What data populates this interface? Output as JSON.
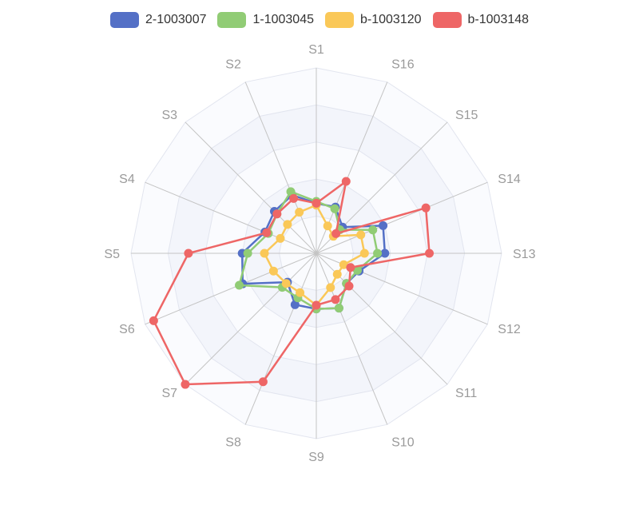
{
  "chart_data": {
    "type": "radar",
    "categories": [
      "S1",
      "S16",
      "S15",
      "S14",
      "S13",
      "S12",
      "S11",
      "S10",
      "S9",
      "S8",
      "S7",
      "S6",
      "S5",
      "S4",
      "S3",
      "S2"
    ],
    "rmax": 100,
    "split_number": 5,
    "series": [
      {
        "name": "2-1003007",
        "color": "#5470c6",
        "values": [
          27,
          27,
          20,
          39,
          37,
          25,
          23,
          32,
          30,
          30,
          22,
          43,
          40,
          30,
          32,
          34
        ]
      },
      {
        "name": "1-1003045",
        "color": "#91cc75",
        "values": [
          28,
          26,
          18,
          33,
          33,
          24,
          23,
          32,
          30,
          26,
          26,
          45,
          37,
          28,
          30,
          36
        ]
      },
      {
        "name": "b-1003120",
        "color": "#fac858",
        "values": [
          26,
          16,
          13,
          26,
          26,
          16,
          16,
          20,
          28,
          23,
          23,
          25,
          28,
          21,
          22,
          24
        ]
      },
      {
        "name": "b-1003148",
        "color": "#ee6666",
        "values": [
          27,
          42,
          15,
          64,
          61,
          20,
          25,
          27,
          28,
          75,
          100,
          95,
          69,
          29,
          30,
          32
        ]
      }
    ]
  }
}
